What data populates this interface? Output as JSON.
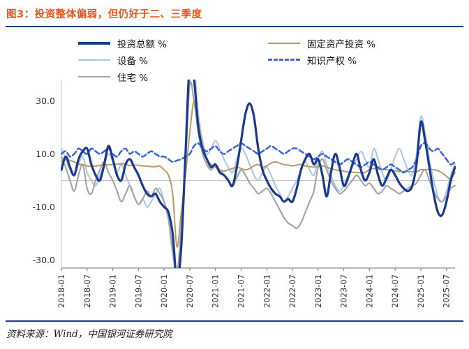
{
  "title": "图3：投资整体偏弱，但仍好于二、三季度",
  "source": "资料来源：Wind，中国银河证券研究院",
  "colors": {
    "title_accent": "#e8541a",
    "divider_navy": "#1b3a8f",
    "axis_line": "#8a8a8a",
    "zero_line": "#c6c6c6",
    "axis_text": "#333333"
  },
  "chart_data": {
    "type": "line",
    "x_frequency": "monthly",
    "x_range": [
      "2018-01",
      "2025-09"
    ],
    "x_ticks": [
      "2018-01",
      "2018-07",
      "2019-01",
      "2019-07",
      "2020-01",
      "2020-07",
      "2021-01",
      "2021-07",
      "2022-01",
      "2022-07",
      "2023-01",
      "2023-07",
      "2024-01",
      "2024-07",
      "2025-01",
      "2025-07"
    ],
    "x_tick_step": 6,
    "y_ticks": [
      {
        "label": "30.0",
        "value": 30
      },
      {
        "label": "10.0",
        "value": 10
      },
      {
        "label": "-10.0",
        "value": -10
      },
      {
        "label": "-30.0",
        "value": -30
      }
    ],
    "ylim": [
      -33,
      38
    ],
    "grid": "zero-line-only",
    "legend_position": "top",
    "series": [
      {
        "id": "total-investment",
        "name": "投资总额 %",
        "color": "#1b3a8f",
        "width": 3.2,
        "legend_weight": 4,
        "dash": null,
        "values": [
          4,
          9,
          5,
          2,
          8,
          11,
          12,
          6,
          2,
          0,
          6,
          13,
          8,
          2,
          0,
          6,
          8,
          5,
          2,
          -2,
          -5,
          -6,
          -5,
          -8,
          -10,
          -12,
          -20,
          -38,
          -25,
          10,
          45,
          38,
          20,
          12,
          8,
          5,
          6,
          3,
          2,
          0,
          -2,
          5,
          15,
          25,
          29,
          24,
          12,
          4,
          0,
          -3,
          -5,
          -6,
          -8,
          -7,
          -8,
          -3,
          4,
          8,
          10,
          6,
          8,
          2,
          -6,
          3,
          10,
          5,
          -2,
          1,
          6,
          10,
          4,
          0,
          3,
          8,
          2,
          -2,
          1,
          4,
          2,
          -1,
          -3,
          -4,
          -2,
          6,
          22,
          15,
          5,
          -5,
          -12,
          -13,
          -8,
          0,
          5
        ]
      },
      {
        "id": "fixed-asset-investment",
        "name": "固定资产投资 %",
        "color": "#b89b62",
        "width": 2,
        "legend_weight": 2.5,
        "dash": null,
        "values": [
          7.2,
          7.9,
          7.5,
          7,
          6.1,
          6,
          5.5,
          5.3,
          5.4,
          5.7,
          5.9,
          5.9,
          6,
          6.1,
          6.3,
          6.1,
          5.6,
          5.8,
          5.7,
          5.5,
          5.4,
          5.2,
          5.2,
          5.4,
          4,
          2,
          -5,
          -25,
          -12,
          2,
          18,
          30,
          22,
          12,
          8,
          6,
          5,
          4,
          3.5,
          4,
          4.5,
          5,
          4.5,
          4,
          4.5,
          5.5,
          6,
          5,
          5.5,
          6.5,
          7,
          6.5,
          6,
          5.8,
          5.5,
          5.8,
          6,
          5.5,
          5.2,
          5,
          5.2,
          5.5,
          5,
          4.5,
          4,
          3.8,
          3.5,
          3.2,
          3.1,
          3,
          2.9,
          3,
          4.2,
          4.5,
          4.3,
          4.2,
          4,
          3.9,
          3.6,
          3.4,
          3.4,
          3.4,
          3.3,
          3.2,
          4.1,
          4,
          4.2,
          4,
          3.7,
          2.8,
          1.6,
          0.5,
          3
        ]
      },
      {
        "id": "equipment",
        "name": "设备 %",
        "color": "#a9c6e8",
        "width": 2,
        "legend_weight": 2.5,
        "dash": null,
        "values": [
          12,
          8,
          4,
          2,
          6,
          9,
          3,
          0,
          -2,
          2,
          6,
          10,
          7,
          3,
          6,
          2,
          -2,
          -6,
          -9,
          -7,
          -10,
          -8,
          -5,
          -3,
          -8,
          -15,
          -28,
          -36,
          -20,
          5,
          38,
          42,
          25,
          15,
          10,
          12,
          15,
          12,
          8,
          5,
          3,
          8,
          12,
          10,
          6,
          2,
          0,
          3,
          5,
          2,
          -2,
          -5,
          -8,
          -6,
          -3,
          0,
          4,
          7,
          4,
          2,
          8,
          11,
          6,
          2,
          -2,
          -4,
          -2,
          2,
          5,
          8,
          11,
          8,
          5,
          12,
          8,
          3,
          0,
          4,
          9,
          12,
          8,
          4,
          2,
          10,
          24,
          18,
          8,
          0,
          -6,
          -8,
          -4,
          2,
          6
        ]
      },
      {
        "id": "intellectual-property",
        "name": "知识产权 %",
        "color": "#3d68d8",
        "width": 2.6,
        "legend_weight": 3,
        "dash": "7 4",
        "values": [
          10,
          11,
          9,
          10,
          12,
          11,
          10,
          12,
          11,
          10,
          11,
          12,
          10,
          9,
          11,
          12,
          10,
          11,
          10,
          9,
          10,
          11,
          10,
          9,
          9,
          8,
          7,
          7.5,
          8,
          9,
          10,
          13,
          14,
          12,
          11,
          12,
          13,
          11,
          10,
          11,
          12,
          13,
          14,
          13,
          12,
          11,
          10,
          11,
          12,
          13,
          12,
          11,
          10,
          11,
          12,
          12,
          11,
          10,
          9,
          8,
          9,
          10,
          9,
          8,
          7,
          6,
          7,
          8,
          7,
          6,
          5,
          6,
          7,
          6,
          5,
          4,
          5,
          6,
          5,
          4,
          3,
          4,
          5,
          8,
          13,
          14,
          12,
          11,
          12,
          10,
          8,
          6,
          7
        ]
      },
      {
        "id": "residential",
        "name": "住宅 %",
        "color": "#a5a5a5",
        "width": 2.2,
        "legend_weight": 2.5,
        "dash": null,
        "values": [
          9,
          5,
          0,
          -4,
          2,
          6,
          -3,
          -5,
          0,
          4,
          7,
          3,
          0,
          -4,
          -8,
          -5,
          -2,
          -6,
          -9,
          -7,
          -4,
          -6,
          -3,
          -5,
          -8,
          -14,
          -26,
          -35,
          -18,
          8,
          36,
          30,
          18,
          10,
          6,
          4,
          6,
          4,
          2,
          0,
          -2,
          1,
          4,
          2,
          -1,
          -3,
          -5,
          -4,
          -3,
          -5,
          -8,
          -11,
          -14,
          -16,
          -17,
          -18,
          -16,
          -12,
          -8,
          -4,
          5,
          8,
          4,
          0,
          -3,
          -5,
          -4,
          -2,
          0,
          2,
          0,
          -2,
          -1,
          -3,
          -5,
          -4,
          -2,
          -3,
          -4,
          -5,
          -4,
          -3,
          -2,
          -1,
          2,
          4,
          0,
          -4,
          -7,
          -8,
          -6,
          -3,
          -2
        ]
      }
    ]
  }
}
